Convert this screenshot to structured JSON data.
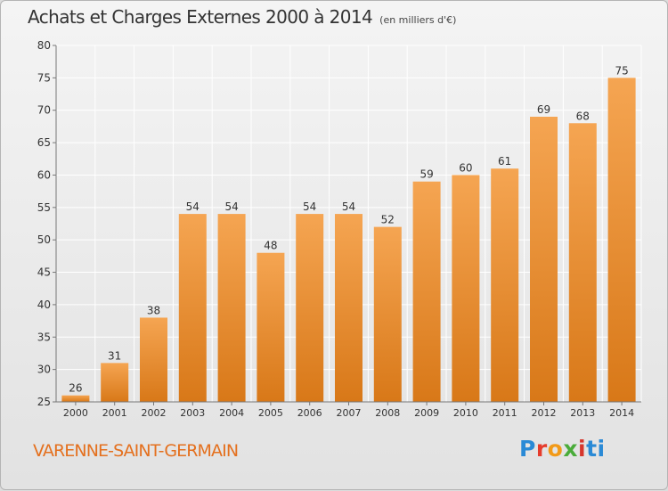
{
  "title": {
    "main": "Achats et Charges Externes 2000 à 2014",
    "sub": "(en milliers d'€)"
  },
  "commune": "VARENNE-SAINT-GERMAIN",
  "logo": {
    "letters": [
      "P",
      "r",
      "o",
      "x",
      "i",
      "ti"
    ]
  },
  "colors": {
    "bar_light": "#f5a552",
    "bar_dark": "#d87818",
    "accent": "#e4701e"
  },
  "chart_data": {
    "type": "bar",
    "categories": [
      "2000",
      "2001",
      "2002",
      "2003",
      "2004",
      "2005",
      "2006",
      "2007",
      "2008",
      "2009",
      "2010",
      "2011",
      "2012",
      "2013",
      "2014"
    ],
    "values": [
      26,
      31,
      38,
      54,
      54,
      48,
      54,
      54,
      52,
      59,
      60,
      61,
      69,
      68,
      75
    ],
    "data_labels": [
      "26",
      "31",
      "38",
      "54",
      "54",
      "48",
      "54",
      "54",
      "52",
      "59",
      "60",
      "61",
      "69",
      "68",
      "75"
    ],
    "ylim": [
      25,
      80
    ],
    "yticks": [
      25,
      30,
      35,
      40,
      45,
      50,
      55,
      60,
      65,
      70,
      75,
      80
    ],
    "ytick_labels": [
      "25",
      "30",
      "35",
      "40",
      "45",
      "50",
      "55",
      "60",
      "65",
      "70",
      "75",
      "80"
    ],
    "grid": true
  }
}
